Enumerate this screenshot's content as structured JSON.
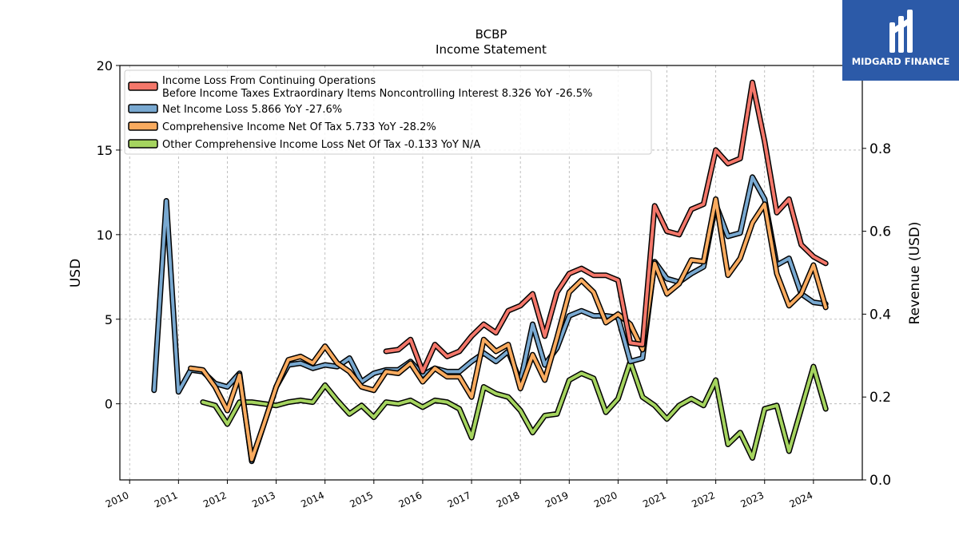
{
  "brand": {
    "name": "MIDGARD FINANCE",
    "color": "#2c5aa8"
  },
  "chart_data": {
    "type": "line",
    "title": "BCBP",
    "subtitle": "Income Statement",
    "ylabel": "USD",
    "y2label": "Revenue (USD)",
    "ylim": [
      -4.5,
      20
    ],
    "y2lim": [
      0.0,
      1.0
    ],
    "yticks": [
      0,
      5,
      10,
      15,
      20
    ],
    "y2ticks": [
      0.0,
      0.2,
      0.4,
      0.6,
      0.8
    ],
    "xlim": [
      2009.8,
      2025.0
    ],
    "xticks": [
      "2010",
      "2011",
      "2012",
      "2013",
      "2014",
      "2015",
      "2016",
      "2017",
      "2018",
      "2019",
      "2020",
      "2021",
      "2022",
      "2023",
      "2024"
    ],
    "grid": true,
    "legend_position": "top-left",
    "series": [
      {
        "name": "Income Loss From Continuing Operations\nBefore Income Taxes Extraordinary Items Noncontrolling Interest  8.326 YoY -26.5%",
        "color": "#f4776a",
        "points": [
          [
            2015.25,
            3.1
          ],
          [
            2015.5,
            3.2
          ],
          [
            2015.75,
            3.8
          ],
          [
            2016.0,
            1.9
          ],
          [
            2016.25,
            3.5
          ],
          [
            2016.5,
            2.8
          ],
          [
            2016.75,
            3.1
          ],
          [
            2017.0,
            4.0
          ],
          [
            2017.25,
            4.7
          ],
          [
            2017.5,
            4.2
          ],
          [
            2017.75,
            5.5
          ],
          [
            2018.0,
            5.8
          ],
          [
            2018.25,
            6.5
          ],
          [
            2018.5,
            4.0
          ],
          [
            2018.75,
            6.6
          ],
          [
            2019.0,
            7.7
          ],
          [
            2019.25,
            8.0
          ],
          [
            2019.5,
            7.6
          ],
          [
            2019.75,
            7.6
          ],
          [
            2020.0,
            7.3
          ],
          [
            2020.25,
            3.6
          ],
          [
            2020.5,
            3.5
          ],
          [
            2020.75,
            11.7
          ],
          [
            2021.0,
            10.2
          ],
          [
            2021.25,
            10.0
          ],
          [
            2021.5,
            11.5
          ],
          [
            2021.75,
            11.8
          ],
          [
            2022.0,
            15.0
          ],
          [
            2022.25,
            14.2
          ],
          [
            2022.5,
            14.5
          ],
          [
            2022.75,
            19.0
          ],
          [
            2023.0,
            15.5
          ],
          [
            2023.25,
            11.3
          ],
          [
            2023.5,
            12.1
          ],
          [
            2023.75,
            9.4
          ],
          [
            2024.0,
            8.7
          ],
          [
            2024.25,
            8.3
          ]
        ]
      },
      {
        "name": "Net Income Loss  5.866 YoY -27.6%",
        "color": "#79a9d1",
        "points": [
          [
            2010.5,
            0.8
          ],
          [
            2010.75,
            12.0
          ],
          [
            2011.0,
            0.7
          ],
          [
            2011.25,
            2.0
          ],
          [
            2011.5,
            1.9
          ],
          [
            2011.75,
            1.2
          ],
          [
            2012.0,
            1.0
          ],
          [
            2012.25,
            1.8
          ],
          [
            2012.5,
            -3.4
          ],
          [
            2012.75,
            -1.2
          ],
          [
            2013.0,
            1.0
          ],
          [
            2013.25,
            2.3
          ],
          [
            2013.5,
            2.4
          ],
          [
            2013.75,
            2.1
          ],
          [
            2014.0,
            2.3
          ],
          [
            2014.25,
            2.2
          ],
          [
            2014.5,
            2.7
          ],
          [
            2014.75,
            1.3
          ],
          [
            2015.0,
            1.8
          ],
          [
            2015.25,
            2.0
          ],
          [
            2015.5,
            2.0
          ],
          [
            2015.75,
            2.5
          ],
          [
            2016.0,
            1.7
          ],
          [
            2016.25,
            2.1
          ],
          [
            2016.5,
            1.9
          ],
          [
            2016.75,
            1.9
          ],
          [
            2017.0,
            2.5
          ],
          [
            2017.25,
            3.0
          ],
          [
            2017.5,
            2.5
          ],
          [
            2017.75,
            3.1
          ],
          [
            2018.0,
            1.3
          ],
          [
            2018.25,
            4.7
          ],
          [
            2018.5,
            2.3
          ],
          [
            2018.75,
            3.3
          ],
          [
            2019.0,
            5.2
          ],
          [
            2019.25,
            5.5
          ],
          [
            2019.5,
            5.2
          ],
          [
            2019.75,
            5.2
          ],
          [
            2020.0,
            5.1
          ],
          [
            2020.25,
            2.5
          ],
          [
            2020.5,
            2.7
          ],
          [
            2020.75,
            8.4
          ],
          [
            2021.0,
            7.4
          ],
          [
            2021.25,
            7.2
          ],
          [
            2021.5,
            7.7
          ],
          [
            2021.75,
            8.1
          ],
          [
            2022.0,
            11.8
          ],
          [
            2022.25,
            9.9
          ],
          [
            2022.5,
            10.1
          ],
          [
            2022.75,
            13.4
          ],
          [
            2023.0,
            12.1
          ],
          [
            2023.25,
            8.2
          ],
          [
            2023.5,
            8.6
          ],
          [
            2023.75,
            6.5
          ],
          [
            2024.0,
            6.0
          ],
          [
            2024.25,
            5.9
          ]
        ]
      },
      {
        "name": "Comprehensive Income Net Of Tax  5.733 YoY -28.2%",
        "color": "#f9ab5f",
        "points": [
          [
            2011.25,
            2.1
          ],
          [
            2011.5,
            2.0
          ],
          [
            2011.75,
            1.0
          ],
          [
            2012.0,
            -0.4
          ],
          [
            2012.25,
            1.7
          ],
          [
            2012.5,
            -3.3
          ],
          [
            2012.75,
            -1.2
          ],
          [
            2013.0,
            1.0
          ],
          [
            2013.25,
            2.6
          ],
          [
            2013.5,
            2.8
          ],
          [
            2013.75,
            2.4
          ],
          [
            2014.0,
            3.4
          ],
          [
            2014.25,
            2.4
          ],
          [
            2014.5,
            1.9
          ],
          [
            2014.75,
            1.0
          ],
          [
            2015.0,
            0.8
          ],
          [
            2015.25,
            1.9
          ],
          [
            2015.5,
            1.8
          ],
          [
            2015.75,
            2.4
          ],
          [
            2016.0,
            1.3
          ],
          [
            2016.25,
            2.1
          ],
          [
            2016.5,
            1.6
          ],
          [
            2016.75,
            1.6
          ],
          [
            2017.0,
            0.4
          ],
          [
            2017.25,
            3.8
          ],
          [
            2017.5,
            3.1
          ],
          [
            2017.75,
            3.5
          ],
          [
            2018.0,
            0.9
          ],
          [
            2018.25,
            2.9
          ],
          [
            2018.5,
            1.4
          ],
          [
            2018.75,
            3.9
          ],
          [
            2019.0,
            6.6
          ],
          [
            2019.25,
            7.3
          ],
          [
            2019.5,
            6.6
          ],
          [
            2019.75,
            4.8
          ],
          [
            2020.0,
            5.3
          ],
          [
            2020.25,
            4.7
          ],
          [
            2020.5,
            3.2
          ],
          [
            2020.75,
            8.3
          ],
          [
            2021.0,
            6.5
          ],
          [
            2021.25,
            7.1
          ],
          [
            2021.5,
            8.5
          ],
          [
            2021.75,
            8.4
          ],
          [
            2022.0,
            12.1
          ],
          [
            2022.25,
            7.6
          ],
          [
            2022.5,
            8.6
          ],
          [
            2022.75,
            10.7
          ],
          [
            2023.0,
            11.8
          ],
          [
            2023.25,
            7.7
          ],
          [
            2023.5,
            5.8
          ],
          [
            2023.75,
            6.5
          ],
          [
            2024.0,
            8.2
          ],
          [
            2024.25,
            5.7
          ]
        ]
      },
      {
        "name": "Other Comprehensive Income Loss Net Of Tax  -0.133 YoY N/A",
        "color": "#a5d45f",
        "points": [
          [
            2011.5,
            0.1
          ],
          [
            2011.75,
            -0.1
          ],
          [
            2012.0,
            -1.2
          ],
          [
            2012.25,
            0.1
          ],
          [
            2012.5,
            0.1
          ],
          [
            2012.75,
            0.0
          ],
          [
            2013.0,
            -0.1
          ],
          [
            2013.25,
            0.1
          ],
          [
            2013.5,
            0.2
          ],
          [
            2013.75,
            0.1
          ],
          [
            2014.0,
            1.1
          ],
          [
            2014.25,
            0.2
          ],
          [
            2014.5,
            -0.6
          ],
          [
            2014.75,
            -0.1
          ],
          [
            2015.0,
            -0.8
          ],
          [
            2015.25,
            0.1
          ],
          [
            2015.5,
            0.0
          ],
          [
            2015.75,
            0.2
          ],
          [
            2016.0,
            -0.2
          ],
          [
            2016.25,
            0.2
          ],
          [
            2016.5,
            0.1
          ],
          [
            2016.75,
            -0.3
          ],
          [
            2017.0,
            -2.0
          ],
          [
            2017.25,
            1.0
          ],
          [
            2017.5,
            0.6
          ],
          [
            2017.75,
            0.4
          ],
          [
            2018.0,
            -0.4
          ],
          [
            2018.25,
            -1.7
          ],
          [
            2018.5,
            -0.7
          ],
          [
            2018.75,
            -0.6
          ],
          [
            2019.0,
            1.4
          ],
          [
            2019.25,
            1.8
          ],
          [
            2019.5,
            1.5
          ],
          [
            2019.75,
            -0.5
          ],
          [
            2020.0,
            0.3
          ],
          [
            2020.25,
            2.5
          ],
          [
            2020.5,
            0.4
          ],
          [
            2020.75,
            -0.1
          ],
          [
            2021.0,
            -0.9
          ],
          [
            2021.25,
            -0.1
          ],
          [
            2021.5,
            0.3
          ],
          [
            2021.75,
            -0.1
          ],
          [
            2022.0,
            1.4
          ],
          [
            2022.25,
            -2.4
          ],
          [
            2022.5,
            -1.7
          ],
          [
            2022.75,
            -3.2
          ],
          [
            2023.0,
            -0.3
          ],
          [
            2023.25,
            -0.1
          ],
          [
            2023.5,
            -2.8
          ],
          [
            2023.75,
            -0.3
          ],
          [
            2024.0,
            2.2
          ],
          [
            2024.25,
            -0.3
          ]
        ]
      }
    ]
  }
}
